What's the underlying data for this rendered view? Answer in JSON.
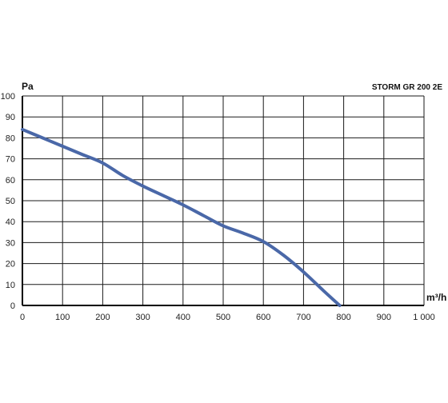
{
  "chart_data": {
    "type": "line",
    "title": "STORM GR 200 2E",
    "xlabel": "m³/h",
    "ylabel": "Pa",
    "xlim": [
      0,
      1000
    ],
    "ylim": [
      0,
      100
    ],
    "x_ticks": [
      0,
      100,
      200,
      300,
      400,
      500,
      600,
      700,
      800,
      900,
      1000
    ],
    "x_tick_labels": [
      "0",
      "100",
      "200",
      "300",
      "400",
      "500",
      "600",
      "700",
      "800",
      "900",
      "1 000"
    ],
    "y_ticks": [
      0,
      10,
      20,
      30,
      40,
      50,
      60,
      70,
      80,
      90,
      100
    ],
    "y_tick_labels": [
      "0",
      "10",
      "20",
      "30",
      "40",
      "50",
      "60",
      "70",
      "80",
      "90",
      "100"
    ],
    "grid": true,
    "series_color": "#4a68a8",
    "series": [
      {
        "x": [
          0,
          50,
          100,
          150,
          200,
          250,
          300,
          350,
          400,
          450,
          500,
          550,
          600,
          650,
          700,
          750,
          790
        ],
        "y": [
          84,
          80,
          76,
          72,
          68,
          62,
          57,
          52.5,
          48,
          43,
          38,
          34.5,
          30.5,
          24,
          16,
          7,
          0
        ]
      }
    ]
  }
}
